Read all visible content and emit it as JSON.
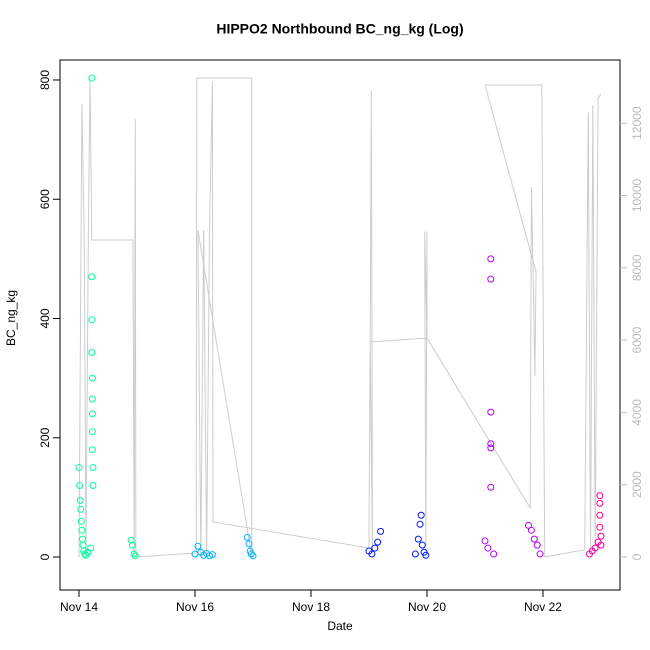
{
  "chart_data": {
    "type": "scatter",
    "title": "HIPPO2 Northbound BC_ng_kg (Log)",
    "x_label": "Date",
    "y_label": "BC_ng_kg",
    "xlim": [
      13.672,
      23.328
    ],
    "ylim": [
      -55.3,
      833.5
    ],
    "y2lim": [
      -913,
      13748
    ],
    "xticks": [
      {
        "value": 14,
        "label": "Nov 14"
      },
      {
        "value": 16,
        "label": "Nov 16"
      },
      {
        "value": 18,
        "label": "Nov 18"
      },
      {
        "value": 20,
        "label": "Nov 20"
      },
      {
        "value": 22,
        "label": "Nov 22"
      }
    ],
    "yticks": [
      0,
      200,
      400,
      600,
      800
    ],
    "y2ticks": [
      0,
      2000,
      4000,
      6000,
      8000,
      10000,
      12000
    ],
    "series": [
      {
        "color": "#00FF99",
        "x": [
          14.0,
          14.01,
          14.02,
          14.03,
          14.04,
          14.05,
          14.06,
          14.07,
          14.08,
          14.1,
          14.12,
          14.15,
          14.2,
          14.22,
          14.22,
          14.22,
          14.22,
          14.23,
          14.23,
          14.23,
          14.23,
          14.23,
          14.24,
          14.24,
          14.9,
          14.92,
          14.95,
          14.97
        ],
        "values": [
          150,
          120,
          95,
          80,
          60,
          45,
          30,
          20,
          10,
          5,
          3,
          8,
          15,
          803,
          470,
          398,
          343,
          300,
          265,
          240,
          210,
          180,
          150,
          120,
          28,
          20,
          5,
          2
        ]
      },
      {
        "color": "#00B3FF",
        "x": [
          16.0,
          16.05,
          16.1,
          16.15,
          16.2,
          16.25,
          16.3,
          16.9,
          16.93,
          16.95,
          16.97,
          17.0
        ],
        "values": [
          5,
          18,
          8,
          3,
          6,
          2,
          4,
          33,
          22,
          10,
          5,
          2
        ]
      },
      {
        "color": "#0019FF",
        "x": [
          19.0,
          19.05,
          19.1,
          19.15,
          19.2,
          19.8,
          19.85,
          19.88,
          19.9,
          19.92,
          19.95,
          19.98
        ],
        "values": [
          10,
          5,
          15,
          25,
          43,
          5,
          30,
          55,
          70,
          20,
          8,
          3
        ]
      },
      {
        "color": "#B300FF",
        "x": [
          21.0,
          21.05,
          21.1,
          21.1,
          21.1,
          21.1,
          21.1,
          21.1,
          21.15,
          21.75,
          21.8,
          21.85,
          21.9,
          21.95
        ],
        "values": [
          27,
          15,
          500,
          466,
          243,
          190,
          183,
          117,
          5,
          53,
          45,
          30,
          20,
          5
        ]
      },
      {
        "color": "#FF0099",
        "x": [
          22.8,
          22.85,
          22.9,
          22.95,
          22.98,
          22.98,
          22.98,
          22.98,
          23.0,
          23.0
        ],
        "values": [
          5,
          10,
          15,
          25,
          50,
          70,
          90,
          103,
          20,
          35
        ]
      },
      {
        "color": "#cccccc",
        "axis": "y2",
        "line": true,
        "x": [
          14.0,
          14.05,
          14.09,
          14.12,
          14.16,
          14.19,
          14.22,
          14.93,
          14.95,
          14.97,
          14.98,
          16.02,
          16.03,
          16.98,
          16.98,
          16.05,
          16.1,
          16.15,
          16.2,
          16.25,
          16.3,
          16.31,
          19.0,
          19.02,
          19.04,
          19.06,
          19.02,
          20.0,
          20.0,
          19.98,
          19.96,
          20.0,
          21.78,
          21.8,
          21.83,
          21.86,
          21.88,
          21.0,
          21.98,
          22.03,
          22.72,
          22.78,
          22.82,
          22.86,
          22.9,
          22.95,
          23.0
        ],
        "values": [
          0,
          12531,
          8769,
          55,
          8824,
          13250,
          8769,
          8769,
          0,
          12116,
          0,
          110,
          13250,
          13250,
          0,
          9046,
          0,
          9046,
          0,
          9046,
          13140,
          968,
          250,
          5947,
          12900,
          200,
          5947,
          6058,
          9000,
          300,
          9000,
          6058,
          1355,
          10235,
          7884,
          5000,
          7884,
          13057,
          13057,
          0,
          200,
          12300,
          200,
          12500,
          300,
          12700,
          12800
        ]
      }
    ]
  }
}
